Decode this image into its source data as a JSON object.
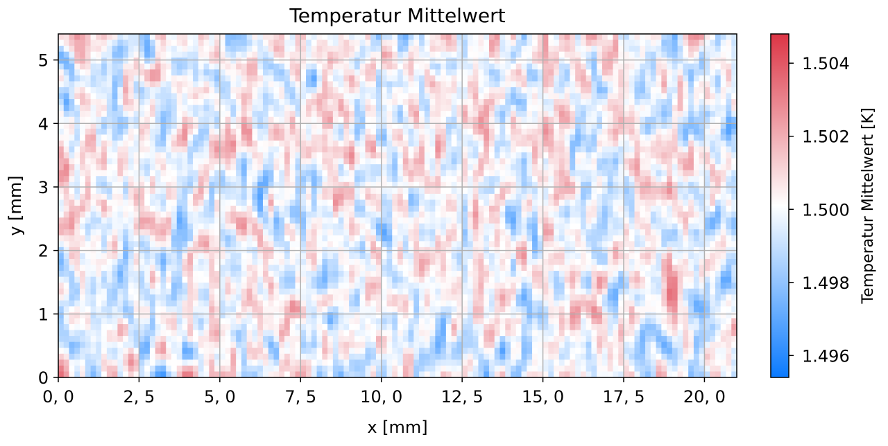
{
  "chart_data": {
    "type": "heatmap",
    "title": "Temperatur Mittelwert",
    "xlabel": "x [mm]",
    "ylabel": "y [mm]",
    "xlim": [
      0,
      21.0
    ],
    "ylim": [
      0,
      5.41
    ],
    "xticks": [
      0,
      2.5,
      5,
      7.5,
      10,
      12.5,
      15,
      17.5,
      20
    ],
    "xtick_labels": [
      "0, 0",
      "2, 5",
      "5, 0",
      "7, 5",
      "10, 0",
      "12, 5",
      "15, 0",
      "17, 5",
      "20, 0"
    ],
    "yticks": [
      0,
      1,
      2,
      3,
      4,
      5
    ],
    "ytick_labels": [
      "0",
      "1",
      "2",
      "3",
      "4",
      "5"
    ],
    "grid": true,
    "colorbar": {
      "label": "Temperatur Mittelwert [K]",
      "range": [
        1.4954,
        1.5048
      ],
      "ticks": [
        1.496,
        1.498,
        1.5,
        1.502,
        1.504
      ],
      "tick_labels": [
        "1.496",
        "1.498",
        "1.500",
        "1.502",
        "1.504"
      ],
      "colors": {
        "low": "#0a7aff",
        "mid": "#ffffff",
        "high": "#dc3545"
      },
      "placement": "right"
    },
    "values_description_note": null
  }
}
